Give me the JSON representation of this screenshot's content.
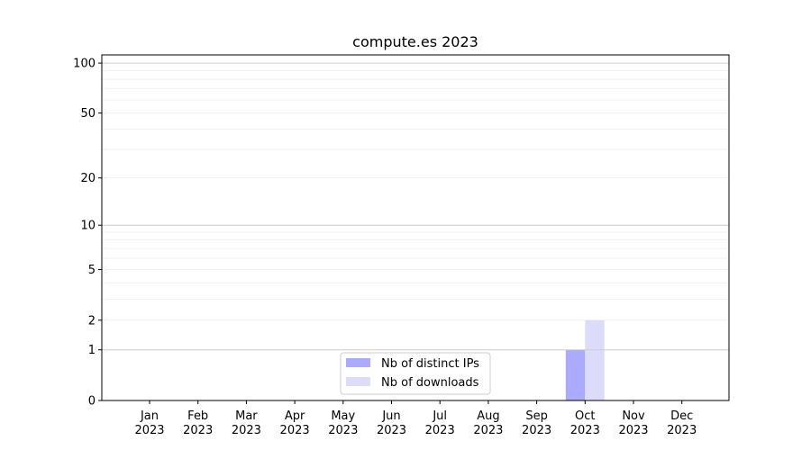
{
  "chart_data": {
    "type": "bar",
    "title": "compute.es 2023",
    "xlabel": "",
    "ylabel": "",
    "y_scale": "symlog",
    "ylim": [
      0,
      112
    ],
    "yticks": [
      0,
      1,
      2,
      5,
      10,
      20,
      50,
      100
    ],
    "ytick_labels": [
      "0",
      "1",
      "2",
      "5",
      "10",
      "20",
      "50",
      "100"
    ],
    "grid": true,
    "legend_position": "lower-center",
    "categories": [
      "Jan\n2023",
      "Feb\n2023",
      "Mar\n2023",
      "Apr\n2023",
      "May\n2023",
      "Jun\n2023",
      "Jul\n2023",
      "Aug\n2023",
      "Sep\n2023",
      "Oct\n2023",
      "Nov\n2023",
      "Dec\n2023"
    ],
    "series": [
      {
        "name": "Nb of distinct IPs",
        "color": "#aaaaff",
        "values": [
          0,
          0,
          0,
          0,
          0,
          0,
          0,
          0,
          0,
          1,
          0,
          0
        ]
      },
      {
        "name": "Nb of downloads",
        "color": "#dcdcfa",
        "values": [
          0,
          0,
          0,
          0,
          0,
          0,
          0,
          0,
          0,
          2,
          0,
          0
        ]
      }
    ]
  }
}
